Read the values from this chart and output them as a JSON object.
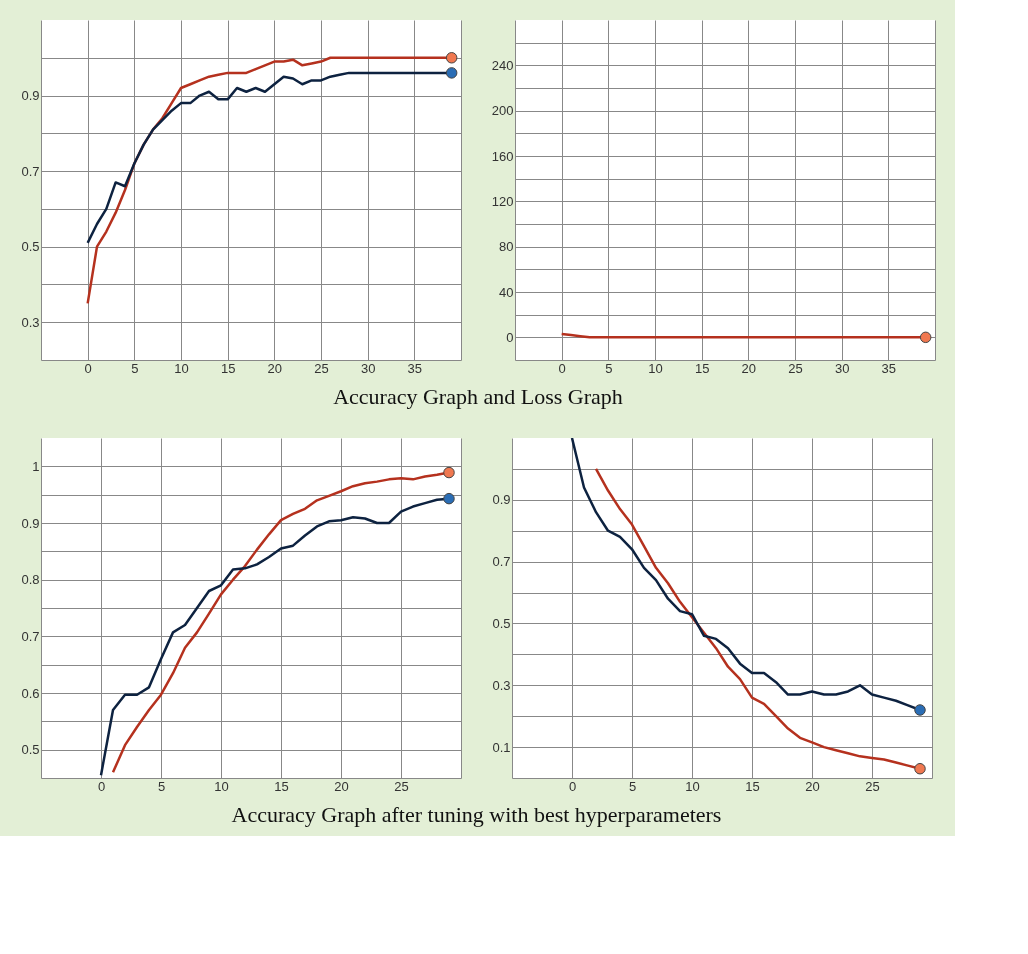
{
  "chart_data": [
    {
      "type": "line",
      "annotations": [
        "Accuracy Graph and Loss Graph"
      ],
      "grid": true,
      "line_style": "solid",
      "x": [
        0,
        1,
        2,
        3,
        4,
        5,
        6,
        7,
        8,
        9,
        10,
        11,
        12,
        13,
        14,
        15,
        16,
        17,
        18,
        19,
        20,
        21,
        22,
        23,
        24,
        25,
        26,
        27,
        28,
        29,
        30,
        31,
        32,
        33,
        34,
        35,
        36,
        37,
        38,
        39
      ],
      "xlim": [
        -5,
        40
      ],
      "xticks": [
        {
          "value": -5,
          "label": null
        },
        0,
        5,
        10,
        15,
        20,
        25,
        30,
        35,
        {
          "value": 40,
          "label": null
        }
      ],
      "ylim": [
        0.2,
        1.1
      ],
      "yticks": [
        {
          "value": 0.2,
          "label": null
        },
        0.3,
        {
          "value": 0.4,
          "label": null
        },
        0.5,
        {
          "value": 0.6,
          "label": null
        },
        0.7,
        {
          "value": 0.8,
          "label": null
        },
        0.9,
        {
          "value": 1.0,
          "label": null
        }
      ],
      "series": [
        {
          "color": "#b5311e",
          "values": [
            0.35,
            0.5,
            0.54,
            0.59,
            0.65,
            0.72,
            0.77,
            0.81,
            0.84,
            0.88,
            0.92,
            0.93,
            0.94,
            0.95,
            0.955,
            0.96,
            0.96,
            0.96,
            0.97,
            0.98,
            0.99,
            0.99,
            0.995,
            0.98,
            0.985,
            0.99,
            1.0,
            1.0,
            1.0,
            1.0,
            1.0,
            1.0,
            1.0,
            1.0,
            1.0,
            1.0,
            1.0,
            1.0,
            1.0,
            1.0
          ]
        },
        {
          "color": "#0d2240",
          "values": [
            0.51,
            0.56,
            0.6,
            0.67,
            0.66,
            0.72,
            0.77,
            0.81,
            0.835,
            0.86,
            0.88,
            0.88,
            0.9,
            0.91,
            0.89,
            0.89,
            0.92,
            0.91,
            0.92,
            0.91,
            0.93,
            0.95,
            0.945,
            0.93,
            0.94,
            0.94,
            0.95,
            0.955,
            0.96,
            0.96,
            0.96,
            0.96,
            0.96,
            0.96,
            0.96,
            0.96,
            0.96,
            0.96,
            0.96,
            0.96
          ]
        },
        {
          "type": "scatter",
          "marker": "circle",
          "color": "#f07850",
          "x": [
            39
          ],
          "values": [
            1.0
          ]
        },
        {
          "type": "scatter",
          "marker": "circle",
          "color": "#2a6db5",
          "x": [
            39
          ],
          "values": [
            0.96
          ]
        }
      ]
    },
    {
      "type": "line",
      "grid": true,
      "line_style": "solid",
      "x": [
        0,
        1,
        2,
        3,
        4,
        5,
        6,
        7,
        8,
        9,
        10,
        11,
        12,
        13,
        14,
        15,
        16,
        17,
        18,
        19,
        20,
        21,
        22,
        23,
        24,
        25,
        26,
        27,
        28,
        29,
        30,
        31,
        32,
        33,
        34,
        35,
        36,
        37,
        38,
        39
      ],
      "xlim": [
        -5,
        40
      ],
      "xticks": [
        {
          "value": -5,
          "label": null
        },
        0,
        5,
        10,
        15,
        20,
        25,
        30,
        35,
        {
          "value": 40,
          "label": null
        }
      ],
      "ylim": [
        -20,
        280
      ],
      "yticks": [
        {
          "value": -20,
          "label": null
        },
        0,
        {
          "value": 20,
          "label": null
        },
        40,
        {
          "value": 60,
          "label": null
        },
        80,
        {
          "value": 100,
          "label": null
        },
        120,
        {
          "value": 140,
          "label": null
        },
        160,
        {
          "value": 180,
          "label": null
        },
        200,
        {
          "value": 220,
          "label": null
        },
        240,
        {
          "value": 260,
          "label": null
        }
      ],
      "series": [
        {
          "color": "#b5311e",
          "values": [
            3,
            2,
            1,
            0,
            0,
            0,
            0,
            0,
            0,
            0,
            0,
            0,
            0,
            0,
            0,
            0,
            0,
            0,
            0,
            0,
            0,
            0,
            0,
            0,
            0,
            0,
            0,
            0,
            0,
            0,
            0,
            0,
            0,
            0,
            0,
            0,
            0,
            0,
            0,
            0
          ]
        },
        {
          "type": "scatter",
          "marker": "circle",
          "color": "#f07850",
          "x": [
            39
          ],
          "values": [
            0
          ]
        }
      ]
    },
    {
      "type": "line",
      "annotations": [
        "Accuracy Graph after tuning with best hyperparameters"
      ],
      "grid": true,
      "line_style": "solid",
      "x": [
        0,
        1,
        2,
        3,
        4,
        5,
        6,
        7,
        8,
        9,
        10,
        11,
        12,
        13,
        14,
        15,
        16,
        17,
        18,
        19,
        20,
        21,
        22,
        23,
        24,
        25,
        26,
        27,
        28,
        29
      ],
      "xlim": [
        -5,
        30
      ],
      "xticks": [
        {
          "value": -5,
          "label": null
        },
        0,
        5,
        10,
        15,
        20,
        25,
        {
          "value": 30,
          "label": null
        }
      ],
      "ylim": [
        0.45,
        1.05
      ],
      "yticks": [
        {
          "value": 0.45,
          "label": null
        },
        0.5,
        {
          "value": 0.55,
          "label": null
        },
        0.6,
        {
          "value": 0.65,
          "label": null
        },
        0.7,
        {
          "value": 0.75,
          "label": null
        },
        0.8,
        {
          "value": 0.85,
          "label": null
        },
        0.9,
        {
          "value": 0.95,
          "label": null
        },
        1
      ],
      "series": [
        {
          "color": "#b5311e",
          "x": [
            1,
            2,
            3,
            4,
            5,
            6,
            7,
            8,
            9,
            10,
            11,
            12,
            13,
            14,
            15,
            16,
            17,
            18,
            19,
            20,
            21,
            22,
            23,
            24,
            25,
            26,
            27,
            28,
            29
          ],
          "values": [
            0.46,
            0.508,
            0.54,
            0.57,
            0.597,
            0.635,
            0.68,
            0.707,
            0.74,
            0.774,
            0.8,
            0.824,
            0.853,
            0.88,
            0.905,
            0.916,
            0.925,
            0.94,
            0.948,
            0.956,
            0.965,
            0.97,
            0.973,
            0.977,
            0.979,
            0.977,
            0.982,
            0.985,
            0.989
          ]
        },
        {
          "color": "#0d2240",
          "values": [
            0.455,
            0.57,
            0.597,
            0.597,
            0.61,
            0.66,
            0.707,
            0.72,
            0.75,
            0.78,
            0.79,
            0.818,
            0.82,
            0.827,
            0.84,
            0.855,
            0.86,
            0.878,
            0.894,
            0.903,
            0.905,
            0.91,
            0.908,
            0.9,
            0.9,
            0.92,
            0.929,
            0.935,
            0.941,
            0.943
          ]
        },
        {
          "type": "scatter",
          "marker": "circle",
          "color": "#f07850",
          "x": [
            29
          ],
          "values": [
            0.989
          ]
        },
        {
          "type": "scatter",
          "marker": "circle",
          "color": "#2a6db5",
          "x": [
            29
          ],
          "values": [
            0.943
          ]
        }
      ]
    },
    {
      "type": "line",
      "grid": true,
      "line_style": "solid",
      "x": [
        0,
        1,
        2,
        3,
        4,
        5,
        6,
        7,
        8,
        9,
        10,
        11,
        12,
        13,
        14,
        15,
        16,
        17,
        18,
        19,
        20,
        21,
        22,
        23,
        24,
        25,
        26,
        27,
        28,
        29
      ],
      "xlim": [
        -5,
        30
      ],
      "xticks": [
        {
          "value": -5,
          "label": null
        },
        0,
        5,
        10,
        15,
        20,
        25,
        {
          "value": 30,
          "label": null
        }
      ],
      "ylim": [
        0,
        1.1
      ],
      "yticks": [
        {
          "value": 0,
          "label": null
        },
        0.1,
        {
          "value": 0.2,
          "label": null
        },
        0.3,
        {
          "value": 0.4,
          "label": null
        },
        0.5,
        {
          "value": 0.6,
          "label": null
        },
        0.7,
        {
          "value": 0.8,
          "label": null
        },
        0.9,
        {
          "value": 1.0,
          "label": null
        }
      ],
      "series": [
        {
          "color": "#b5311e",
          "x": [
            2,
            3,
            4,
            5,
            6,
            7,
            8,
            9,
            10,
            11,
            12,
            13,
            14,
            15,
            16,
            17,
            18,
            19,
            20,
            21,
            22,
            23,
            24,
            25,
            26,
            27,
            28,
            29
          ],
          "values": [
            1.0,
            0.93,
            0.87,
            0.82,
            0.75,
            0.68,
            0.63,
            0.57,
            0.52,
            0.47,
            0.42,
            0.36,
            0.32,
            0.26,
            0.24,
            0.2,
            0.16,
            0.13,
            0.115,
            0.1,
            0.09,
            0.08,
            0.07,
            0.065,
            0.06,
            0.05,
            0.04,
            0.03
          ]
        },
        {
          "color": "#0d2240",
          "values": [
            1.1,
            0.94,
            0.86,
            0.8,
            0.78,
            0.74,
            0.68,
            0.64,
            0.58,
            0.54,
            0.53,
            0.46,
            0.45,
            0.42,
            0.37,
            0.34,
            0.34,
            0.31,
            0.27,
            0.27,
            0.28,
            0.27,
            0.27,
            0.28,
            0.3,
            0.27,
            0.26,
            0.25,
            0.235,
            0.22
          ]
        },
        {
          "type": "scatter",
          "marker": "circle",
          "color": "#f07850",
          "x": [
            29
          ],
          "values": [
            0.03
          ]
        },
        {
          "type": "scatter",
          "marker": "circle",
          "color": "#2a6db5",
          "x": [
            29
          ],
          "values": [
            0.22
          ]
        }
      ]
    }
  ]
}
